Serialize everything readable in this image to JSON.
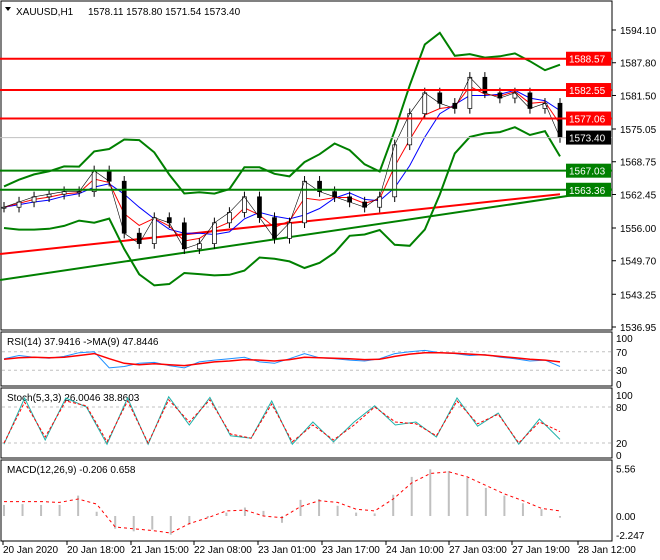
{
  "header": {
    "symbol": "XAUUSD,H1",
    "ohlc": "1578.11 1578.80 1571.54 1573.40"
  },
  "colors": {
    "bull_line": "#008000",
    "bear_line": "#ff0000",
    "price": "#000000",
    "rsi": "#1e90ff",
    "stoch": "#20b2aa",
    "macd_hist": "#c0c0c0"
  },
  "chart_data": [
    {
      "type": "line",
      "name": "price",
      "ylim": [
        1536.95,
        1594.1
      ],
      "yticks": [
        "1594.10",
        "1587.80",
        "1581.50",
        "1575.05",
        "1568.75",
        "1562.45",
        "1556.00",
        "1549.70",
        "1543.25",
        "1536.95"
      ],
      "close": [
        1560,
        1561,
        1562,
        1562.5,
        1563,
        1563,
        1567,
        1565,
        1555,
        1553,
        1558,
        1557,
        1552,
        1553,
        1557,
        1559,
        1562,
        1558,
        1554,
        1557,
        1565,
        1563,
        1562,
        1561,
        1560,
        1562,
        1572,
        1578,
        1582,
        1580,
        1579,
        1585,
        1582,
        1581,
        1582,
        1579,
        1580,
        1573.4
      ],
      "current_price": "1573.40",
      "levels": [
        {
          "value": "1588.57",
          "color": "#ff0000"
        },
        {
          "value": "1582.55",
          "color": "#ff0000"
        },
        {
          "value": "1577.06",
          "color": "#ff0000"
        },
        {
          "value": "1567.03",
          "color": "#008000"
        },
        {
          "value": "1563.36",
          "color": "#008000"
        }
      ],
      "trendline": [
        1546,
        1561.5
      ],
      "slow_ma": [
        1551,
        1562.5
      ]
    },
    {
      "type": "line",
      "name": "RSI",
      "label": "RSI(14) 37.9416  ->MA(9) 47.8446",
      "ylim": [
        0,
        100
      ],
      "yticks": [
        "100",
        "70",
        "30",
        "0"
      ],
      "rsi": [
        55,
        62,
        58,
        56,
        60,
        68,
        70,
        35,
        38,
        45,
        47,
        40,
        35,
        48,
        52,
        55,
        58,
        48,
        45,
        55,
        66,
        57,
        55,
        52,
        50,
        55,
        66,
        70,
        73,
        68,
        66,
        62,
        64,
        58,
        55,
        50,
        52,
        38
      ],
      "ma": [
        54,
        57,
        58,
        57,
        58,
        62,
        66,
        55,
        45,
        42,
        44,
        42,
        40,
        44,
        48,
        50,
        53,
        52,
        50,
        53,
        58,
        57,
        56,
        55,
        53,
        54,
        60,
        65,
        68,
        68,
        67,
        65,
        63,
        60,
        57,
        54,
        52,
        48
      ]
    },
    {
      "type": "line",
      "name": "Stoch",
      "label": "Stoch(5,3,3) 26.0046 38.8603",
      "ylim": [
        0,
        100
      ],
      "yticks": [
        "100",
        "80",
        "20",
        "0"
      ],
      "k": [
        18,
        95,
        25,
        95,
        80,
        18,
        95,
        18,
        97,
        50,
        96,
        32,
        28,
        90,
        18,
        55,
        22,
        55,
        82,
        50,
        55,
        30,
        95,
        48,
        70,
        18,
        60,
        26
      ],
      "d": [
        20,
        88,
        30,
        90,
        82,
        22,
        90,
        20,
        92,
        55,
        92,
        35,
        28,
        85,
        22,
        50,
        25,
        50,
        80,
        55,
        52,
        32,
        90,
        52,
        68,
        20,
        55,
        39
      ]
    },
    {
      "type": "bar",
      "name": "MACD",
      "label": "MACD(12,26,9) -0.206 0.658",
      "ylim": [
        -2.247,
        5.56
      ],
      "yticks": [
        "5.56",
        "0.00",
        "-2.247"
      ],
      "hist": [
        1.3,
        1.4,
        1.3,
        1.3,
        2.4,
        0.5,
        -1.5,
        -1.8,
        -1.6,
        -2.2,
        -1.0,
        -0.2,
        0.4,
        1.0,
        0.6,
        -0.8,
        1.9,
        2.0,
        1.2,
        0.4,
        0.3,
        2.5,
        4.6,
        5.5,
        5.3,
        4.5,
        3.3,
        2.4,
        1.5,
        0.8,
        -0.2
      ],
      "signal": [
        1.7,
        1.7,
        1.7,
        1.6,
        2.0,
        1.4,
        -1.3,
        -1.5,
        -1.7,
        -2.0,
        -0.9,
        -0.2,
        0.6,
        0.7,
        0.0,
        -0.2,
        1.1,
        1.8,
        1.6,
        0.8,
        0.6,
        2.0,
        3.9,
        5.0,
        5.2,
        4.6,
        3.6,
        2.6,
        1.8,
        0.9,
        0.6
      ]
    }
  ],
  "time_axis": [
    "20 Jan 2020",
    "20 Jan 18:00",
    "21 Jan 15:00",
    "22 Jan 08:00",
    "23 Jan 01:00",
    "23 Jan 17:00",
    "24 Jan 10:00",
    "27 Jan 03:00",
    "27 Jan 19:00",
    "28 Jan 12:00"
  ]
}
